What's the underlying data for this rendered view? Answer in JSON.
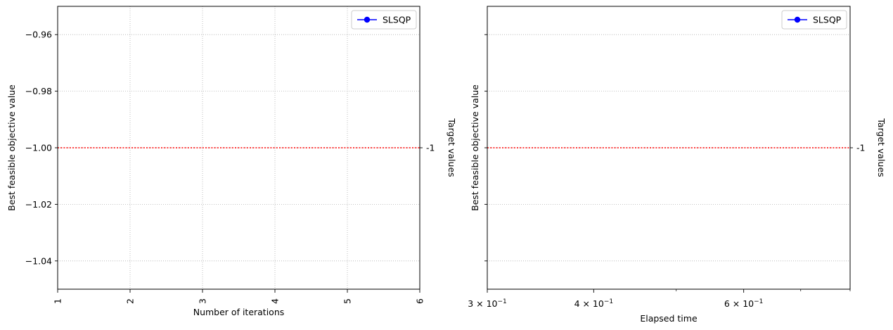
{
  "chart_data": [
    {
      "type": "line",
      "xlabel": "Number of iterations",
      "ylabel": "Best feasible objective value",
      "right_ylabel": "Target values",
      "xlim": [
        1,
        6
      ],
      "ylim": [
        -1.05,
        -0.95
      ],
      "x_scale": "linear",
      "xticks": [
        1,
        2,
        3,
        4,
        5,
        6
      ],
      "xtick_labels": [
        "1",
        "2",
        "3",
        "4",
        "5",
        "6"
      ],
      "yticks": [
        -0.96,
        -0.98,
        -1.0,
        -1.02,
        -1.04
      ],
      "ytick_labels": [
        "−0.96",
        "−0.98",
        "−1.00",
        "−1.02",
        "−1.04"
      ],
      "grid": true,
      "series": [
        {
          "name": "SLSQP",
          "x": [],
          "y": [],
          "color": "#0000ff",
          "marker": "circle"
        }
      ],
      "target_line": {
        "value": -1.0,
        "label": "-1",
        "color": "#ff0000",
        "style": "dotted"
      },
      "legend": {
        "placement": "upper right",
        "entries": [
          "SLSQP"
        ]
      }
    },
    {
      "type": "line",
      "xlabel": "Elapsed time",
      "ylabel": "Best feasible objective value",
      "right_ylabel": "Target values",
      "xlim": [
        0.3,
        0.8
      ],
      "ylim": [
        -1.05,
        -0.95
      ],
      "x_scale": "log",
      "xticks_major": [
        0.3,
        0.4,
        0.6
      ],
      "xtick_labels": [
        {
          "base": "3 × 10",
          "exp": "−1"
        },
        {
          "base": "4 × 10",
          "exp": "−1"
        },
        {
          "base": "6 × 10",
          "exp": "−1"
        }
      ],
      "xticks_minor": [
        0.5,
        0.7,
        0.8
      ],
      "yticks": [
        -0.96,
        -0.98,
        -1.0,
        -1.02,
        -1.04
      ],
      "ytick_labels": [],
      "grid": true,
      "series": [
        {
          "name": "SLSQP",
          "x": [],
          "y": [],
          "color": "#0000ff",
          "marker": "circle"
        }
      ],
      "target_line": {
        "value": -1.0,
        "label": "-1",
        "color": "#ff0000",
        "style": "dotted"
      },
      "legend": {
        "placement": "upper right",
        "entries": [
          "SLSQP"
        ]
      }
    }
  ]
}
